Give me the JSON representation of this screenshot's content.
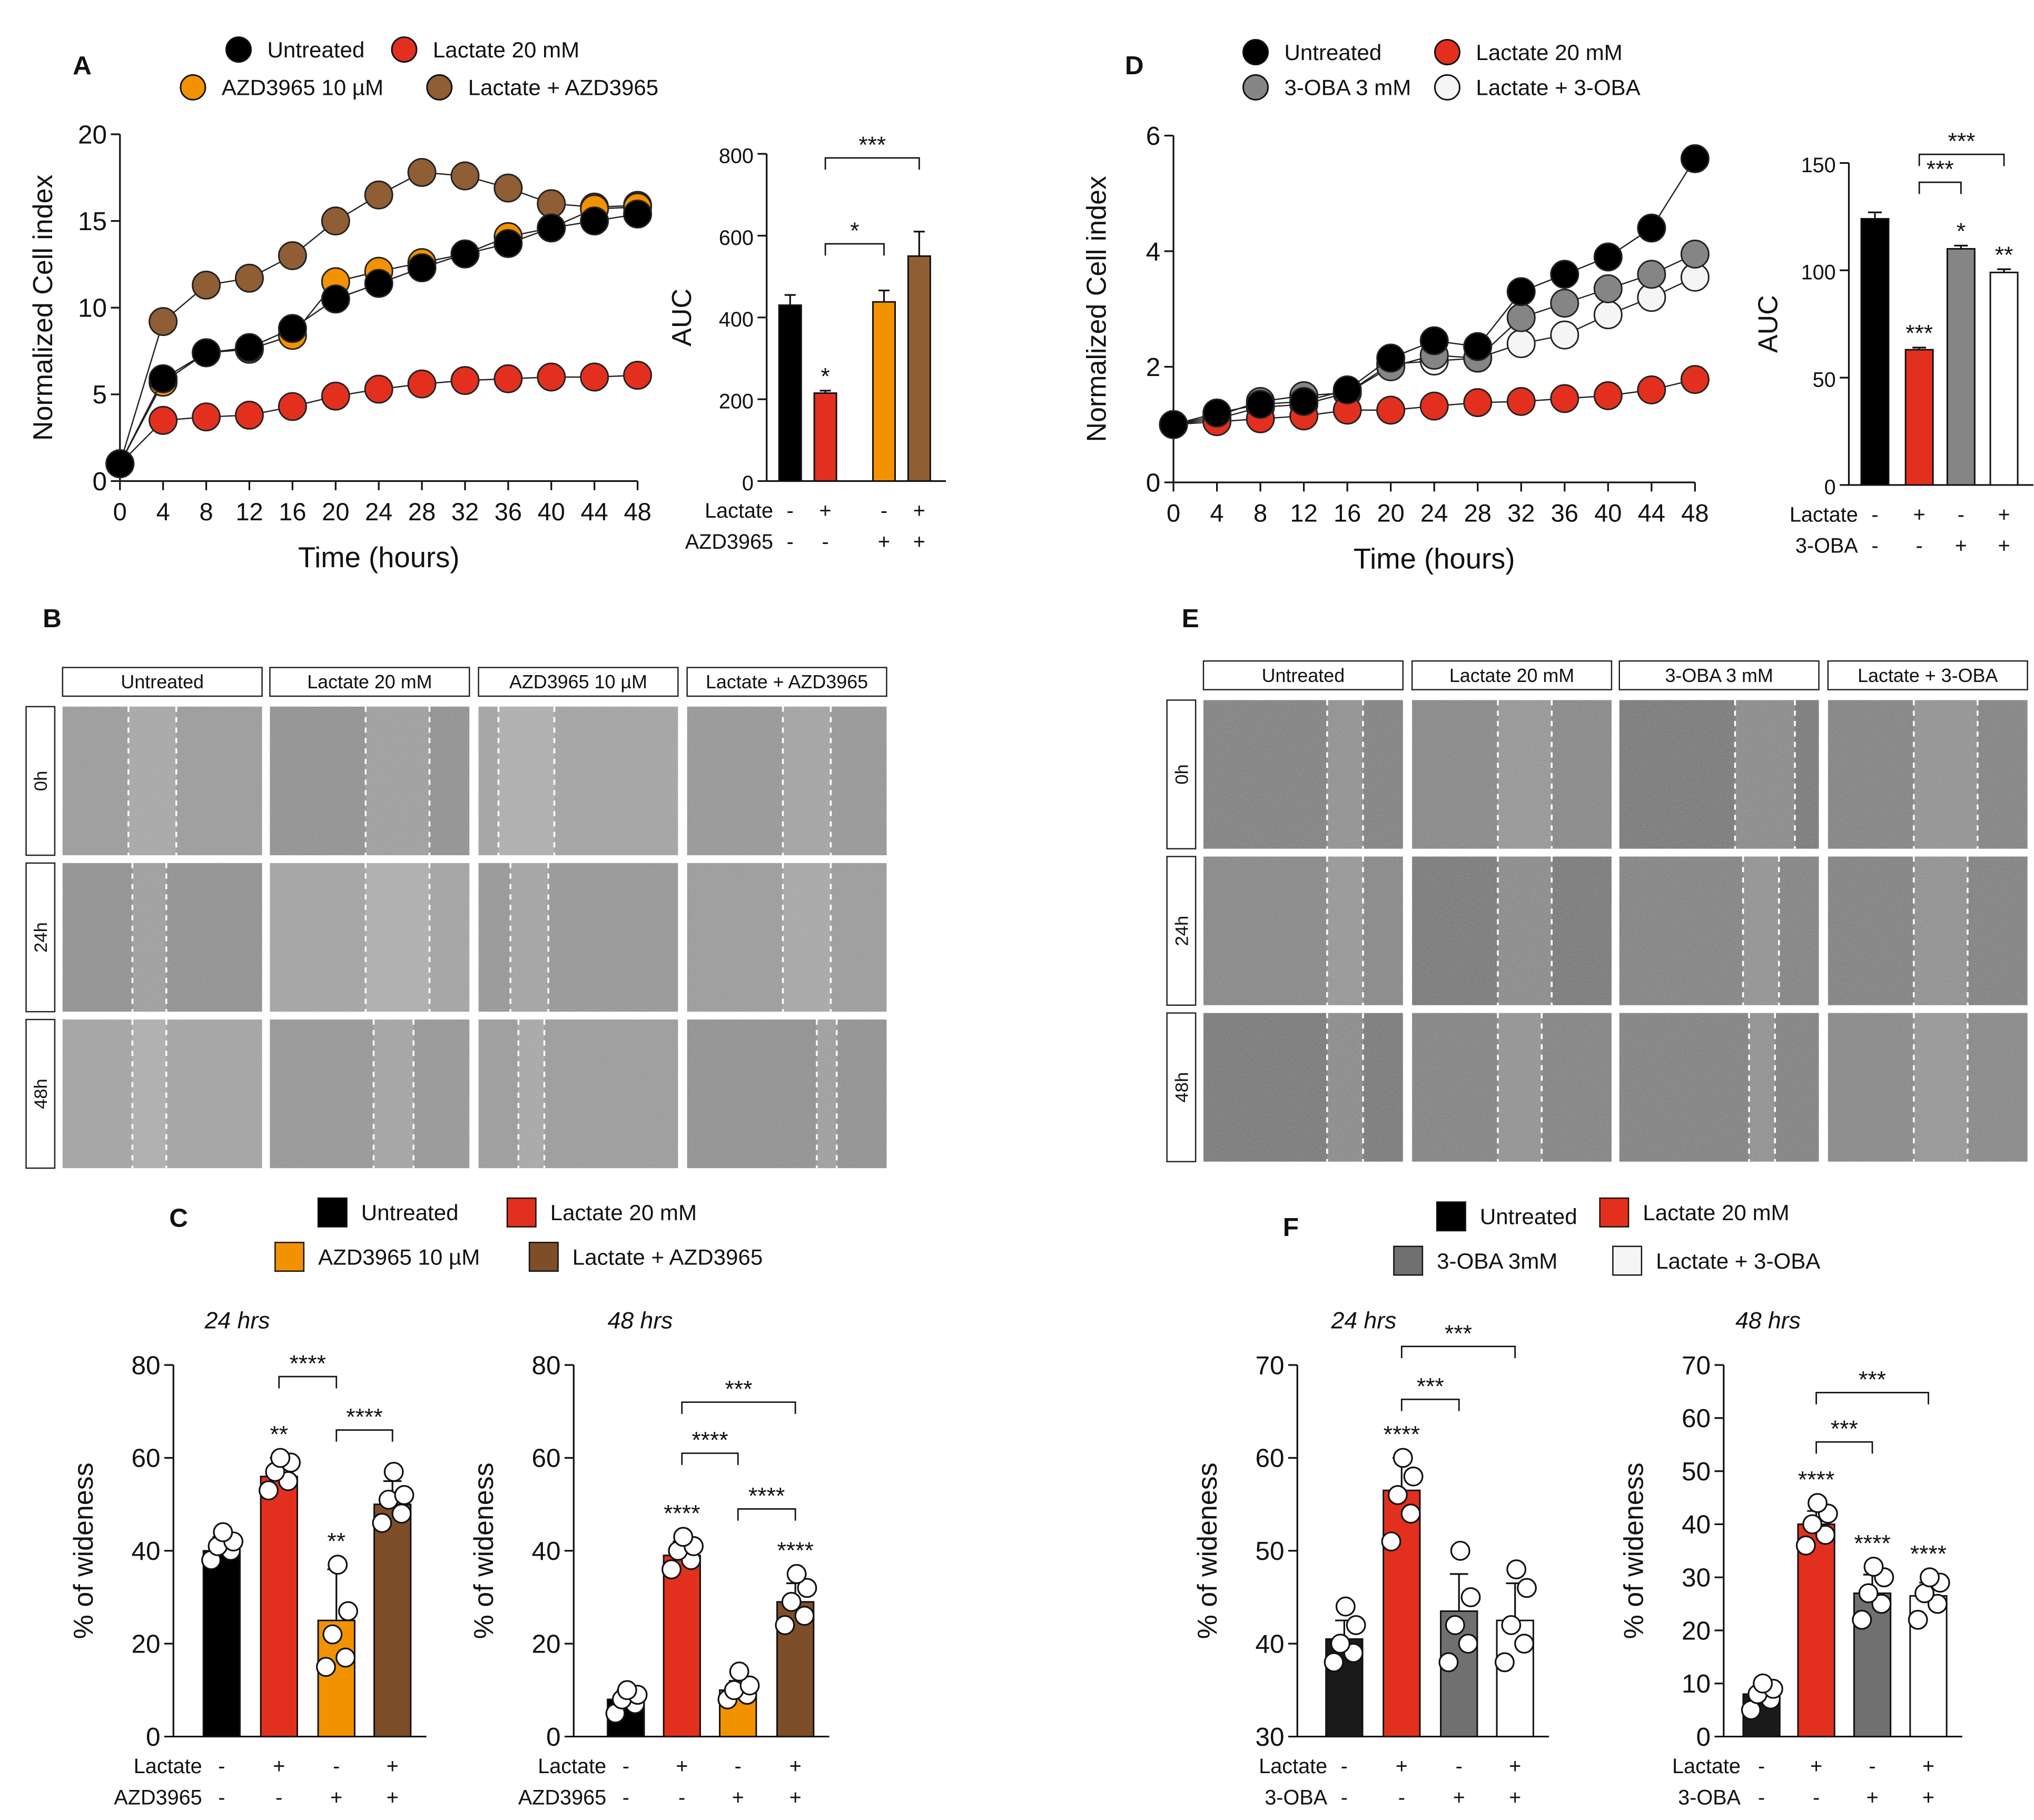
{
  "panel_letters": {
    "A": "A",
    "B": "B",
    "C": "C",
    "D": "D",
    "E": "E",
    "F": "F"
  },
  "colors": {
    "untreated": "#000000",
    "lactate": "#e3301e",
    "azd": "#f39200",
    "lac_azd": "#8f5e34",
    "oba": "#858585",
    "lac_oba": "#f5f5f5"
  },
  "chart_data": [
    {
      "id": "A-line",
      "type": "line",
      "xlabel": "Time (hours)",
      "ylabel": "Normalized Cell index",
      "ylim": [
        0,
        20
      ],
      "yticks": [
        0,
        5,
        10,
        15,
        20
      ],
      "x": [
        0,
        4,
        8,
        12,
        16,
        20,
        24,
        28,
        32,
        36,
        40,
        44,
        48
      ],
      "legend": [
        {
          "label": "Untreated",
          "color": "#000000"
        },
        {
          "label": "Lactate 20 mM",
          "color": "#e3301e"
        },
        {
          "label": "AZD3965 10 µM",
          "color": "#f39200"
        },
        {
          "label": "Lactate + AZD3965",
          "color": "#8f5e34"
        }
      ],
      "series": [
        {
          "name": "Untreated",
          "color": "#000000",
          "values": [
            1,
            5.9,
            7.4,
            7.7,
            8.8,
            10.5,
            11.4,
            12.3,
            13.1,
            13.7,
            14.6,
            15.0,
            15.4
          ]
        },
        {
          "name": "Lactate 20 mM",
          "color": "#e3301e",
          "values": [
            1,
            3.5,
            3.7,
            3.8,
            4.3,
            4.9,
            5.3,
            5.6,
            5.8,
            5.9,
            6.0,
            6.0,
            6.1
          ]
        },
        {
          "name": "AZD3965 10 µM",
          "color": "#f39200",
          "values": [
            1,
            5.7,
            7.4,
            7.6,
            8.4,
            11.5,
            12.1,
            12.6,
            13.1,
            14.1,
            14.6,
            15.7,
            15.8
          ]
        },
        {
          "name": "Lactate + AZD3965",
          "color": "#8f5e34",
          "values": [
            1,
            9.2,
            11.3,
            11.7,
            13.0,
            15.0,
            16.5,
            17.8,
            17.6,
            16.9,
            16.0,
            15.8,
            15.9
          ]
        }
      ]
    },
    {
      "id": "A-auc",
      "type": "bar",
      "title": "",
      "ylabel": "AUC",
      "ylim": [
        0,
        800
      ],
      "yticks": [
        0,
        200,
        400,
        600,
        800
      ],
      "values": [
        430,
        215,
        438,
        550
      ],
      "errors": [
        25,
        6,
        28,
        60
      ],
      "colors": [
        "#000000",
        "#e3301e",
        "#f39200",
        "#8f5e34"
      ],
      "sig": [
        "",
        "*",
        "",
        ""
      ],
      "brackets": [
        {
          "from": 1,
          "to": 2,
          "level": 580,
          "label": "*"
        },
        {
          "from": 1,
          "to": 3,
          "level": 790,
          "label": "***"
        }
      ],
      "rows": [
        {
          "label": "Lactate",
          "signs": [
            "-",
            "+",
            "-",
            "+"
          ]
        },
        {
          "label": "AZD3965",
          "signs": [
            "-",
            "-",
            "+",
            "+"
          ]
        }
      ]
    },
    {
      "id": "D-line",
      "type": "line",
      "xlabel": "Time (hours)",
      "ylabel": "Normalized Cell index",
      "ylim": [
        0,
        6
      ],
      "yticks": [
        0,
        2,
        4,
        6
      ],
      "x": [
        0,
        4,
        8,
        12,
        16,
        20,
        24,
        28,
        32,
        36,
        40,
        44,
        48
      ],
      "legend": [
        {
          "label": "Untreated",
          "color": "#000000"
        },
        {
          "label": "Lactate 20 mM",
          "color": "#e3301e"
        },
        {
          "label": "3-OBA 3 mM",
          "color": "#858585"
        },
        {
          "label": "Lactate + 3-OBA",
          "color": "#f5f5f5"
        }
      ],
      "series": [
        {
          "name": "Untreated",
          "color": "#000000",
          "values": [
            1,
            1.2,
            1.35,
            1.4,
            1.6,
            2.15,
            2.45,
            2.35,
            3.3,
            3.6,
            3.9,
            4.4,
            5.6
          ]
        },
        {
          "name": "Lactate 20 mM",
          "color": "#e3301e",
          "values": [
            1,
            1.05,
            1.1,
            1.15,
            1.25,
            1.25,
            1.32,
            1.38,
            1.4,
            1.45,
            1.5,
            1.6,
            1.78
          ]
        },
        {
          "name": "3-OBA 3 mM",
          "color": "#858585",
          "values": [
            1,
            1.15,
            1.4,
            1.5,
            1.55,
            2.0,
            2.2,
            2.15,
            2.85,
            3.1,
            3.35,
            3.6,
            3.95
          ]
        },
        {
          "name": "Lactate + 3-OBA",
          "color": "#f5f5f5",
          "values": [
            1,
            1.1,
            1.3,
            1.35,
            1.55,
            2.05,
            2.1,
            2.15,
            2.4,
            2.55,
            2.9,
            3.2,
            3.55
          ]
        }
      ]
    },
    {
      "id": "D-auc",
      "type": "bar",
      "title": "",
      "ylabel": "AUC",
      "ylim": [
        0,
        150
      ],
      "yticks": [
        0,
        50,
        100,
        150
      ],
      "values": [
        124,
        63,
        110,
        99
      ],
      "errors": [
        3,
        1,
        1.5,
        1.5
      ],
      "colors": [
        "#000000",
        "#e3301e",
        "#858585",
        "#ffffff"
      ],
      "sig": [
        "",
        "***",
        "*",
        "**"
      ],
      "brackets": [
        {
          "from": 1,
          "to": 2,
          "level": 141,
          "label": "***"
        },
        {
          "from": 1,
          "to": 3,
          "level": 154,
          "label": "***"
        }
      ],
      "rows": [
        {
          "label": "Lactate",
          "signs": [
            "-",
            "+",
            "-",
            "+"
          ]
        },
        {
          "label": "3-OBA",
          "signs": [
            "-",
            "-",
            "+",
            "+"
          ]
        }
      ]
    },
    {
      "id": "C-24",
      "type": "bar",
      "title": "24 hrs",
      "ylabel": "% of wideness",
      "ylim": [
        0,
        80
      ],
      "yticks": [
        0,
        20,
        40,
        60,
        80
      ],
      "values": [
        40,
        56,
        25,
        50
      ],
      "errors": [
        3,
        4,
        11,
        5
      ],
      "colors": [
        "#000000",
        "#e3301e",
        "#f39200",
        "#7d4e28"
      ],
      "points": [
        [
          38,
          40,
          41,
          42,
          44
        ],
        [
          53,
          55,
          57,
          59,
          60
        ],
        [
          15,
          17,
          22,
          27,
          37
        ],
        [
          46,
          48,
          51,
          52,
          57
        ]
      ],
      "sig": [
        "",
        "**",
        "**",
        ""
      ],
      "brackets": [
        {
          "from": 1,
          "to": 2,
          "level": 77.5,
          "label": "****"
        },
        {
          "from": 2,
          "to": 3,
          "level": 66,
          "label": "****"
        }
      ],
      "rows": [
        {
          "label": "Lactate",
          "signs": [
            "-",
            "+",
            "-",
            "+"
          ]
        },
        {
          "label": "AZD3965",
          "signs": [
            "-",
            "-",
            "+",
            "+"
          ]
        }
      ]
    },
    {
      "id": "C-48",
      "type": "bar",
      "title": "48 hrs",
      "ylabel": "% of wideness",
      "ylim": [
        0,
        80
      ],
      "yticks": [
        0,
        20,
        40,
        60,
        80
      ],
      "values": [
        8,
        39,
        10,
        29
      ],
      "errors": [
        2,
        3,
        2,
        4
      ],
      "colors": [
        "#000000",
        "#e3301e",
        "#f39200",
        "#7d4e28"
      ],
      "points": [
        [
          5,
          7,
          8,
          9,
          10
        ],
        [
          36,
          38,
          40,
          41,
          43
        ],
        [
          8,
          9,
          10,
          11,
          14
        ],
        [
          24,
          26,
          29,
          32,
          35
        ]
      ],
      "sig": [
        "",
        "****",
        "",
        "****"
      ],
      "brackets": [
        {
          "from": 1,
          "to": 3,
          "level": 72,
          "label": "***"
        },
        {
          "from": 1,
          "to": 2,
          "level": 61,
          "label": "****"
        },
        {
          "from": 2,
          "to": 3,
          "level": 49,
          "label": "****"
        }
      ],
      "rows": [
        {
          "label": "Lactate",
          "signs": [
            "-",
            "+",
            "-",
            "+"
          ]
        },
        {
          "label": "AZD3965",
          "signs": [
            "-",
            "-",
            "+",
            "+"
          ]
        }
      ]
    },
    {
      "id": "F-24",
      "type": "bar",
      "title": "24 hrs",
      "ylabel": "% of wideness",
      "ylim": [
        30,
        70
      ],
      "yticks": [
        30,
        40,
        50,
        60,
        70
      ],
      "values": [
        40.5,
        56.5,
        43.5,
        42.5
      ],
      "errors": [
        2,
        3.5,
        4,
        4
      ],
      "colors": [
        "#1a1a1a",
        "#e3301e",
        "#707070",
        "#ffffff"
      ],
      "points": [
        [
          38,
          39,
          40,
          42,
          44
        ],
        [
          51,
          54,
          56,
          58,
          60
        ],
        [
          38,
          40,
          42,
          45,
          50
        ],
        [
          38,
          40,
          42,
          46,
          48
        ]
      ],
      "sig": [
        "",
        "****",
        "",
        ""
      ],
      "brackets": [
        {
          "from": 1,
          "to": 3,
          "level": 72,
          "label": "***"
        },
        {
          "from": 1,
          "to": 2,
          "level": 66.3,
          "label": "***"
        }
      ],
      "rows": [
        {
          "label": "Lactate",
          "signs": [
            "-",
            "+",
            "-",
            "+"
          ]
        },
        {
          "label": "3-OBA",
          "signs": [
            "-",
            "-",
            "+",
            "+"
          ]
        }
      ]
    },
    {
      "id": "F-48",
      "type": "bar",
      "title": "48 hrs",
      "ylabel": "% of wideness",
      "ylim": [
        0,
        70
      ],
      "yticks": [
        0,
        10,
        20,
        30,
        40,
        50,
        60,
        70
      ],
      "values": [
        8,
        40,
        27,
        26.5
      ],
      "errors": [
        1.5,
        2.5,
        3.5,
        2.5
      ],
      "colors": [
        "#1a1a1a",
        "#e3301e",
        "#707070",
        "#ffffff"
      ],
      "points": [
        [
          5,
          7,
          8,
          9,
          10
        ],
        [
          36,
          38,
          40,
          42,
          44
        ],
        [
          22,
          25,
          27,
          30,
          32
        ],
        [
          22,
          25,
          27,
          29,
          30
        ]
      ],
      "sig": [
        "",
        "****",
        "****",
        "****"
      ],
      "brackets": [
        {
          "from": 1,
          "to": 3,
          "level": 64.8,
          "label": "***"
        },
        {
          "from": 1,
          "to": 2,
          "level": 55.5,
          "label": "***"
        }
      ],
      "rows": [
        {
          "label": "Lactate",
          "signs": [
            "-",
            "+",
            "-",
            "+"
          ]
        },
        {
          "label": "3-OBA",
          "signs": [
            "-",
            "-",
            "+",
            "+"
          ]
        }
      ]
    }
  ],
  "legend_C": [
    {
      "label": "Untreated",
      "color": "#000000"
    },
    {
      "label": "Lactate 20 mM",
      "color": "#e3301e"
    },
    {
      "label": "AZD3965 10 µM",
      "color": "#f39200"
    },
    {
      "label": "Lactate + AZD3965",
      "color": "#7d4e28"
    }
  ],
  "legend_F": [
    {
      "label": "Untreated",
      "color": "#000000"
    },
    {
      "label": "Lactate 20 mM",
      "color": "#e3301e"
    },
    {
      "label": "3-OBA 3mM",
      "color": "#707070"
    },
    {
      "label": "Lactate + 3-OBA",
      "color": "#f5f5f5"
    }
  ],
  "micro_B": {
    "columns": [
      "Untreated",
      "Lactate 20 mM",
      "AZD3965 10 µM",
      "Lactate + AZD3965"
    ],
    "rows": [
      "0h",
      "24h",
      "48h"
    ]
  },
  "micro_E": {
    "columns": [
      "Untreated",
      "Lactate 20 mM",
      "3-OBA 3 mM",
      "Lactate + 3-OBA"
    ],
    "rows": [
      "0h",
      "24h",
      "48h"
    ]
  }
}
